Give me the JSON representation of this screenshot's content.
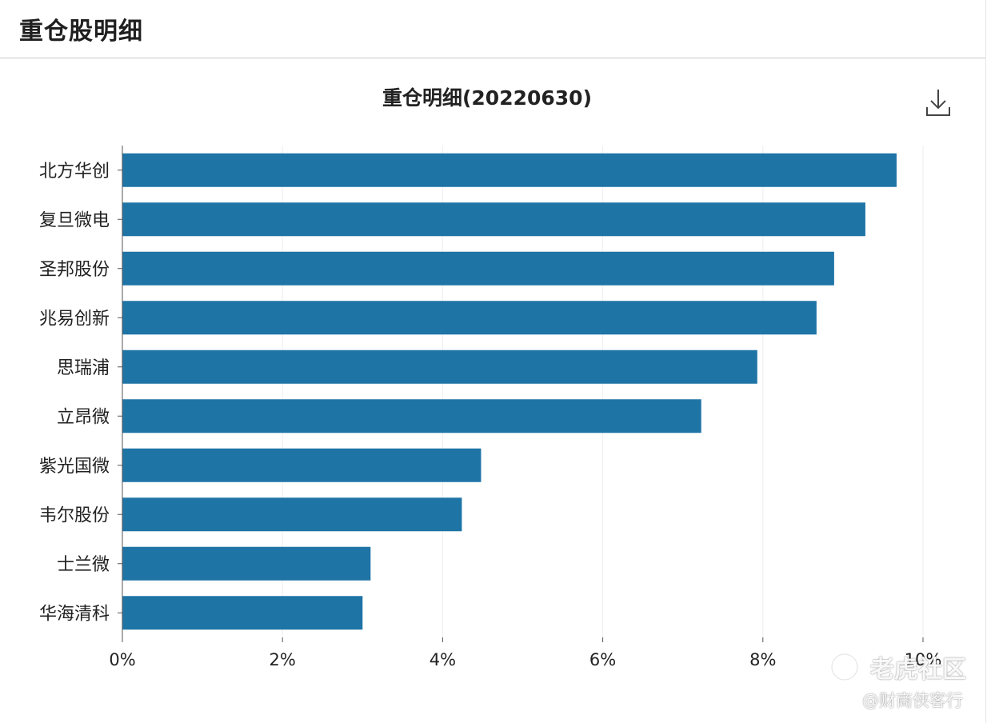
{
  "header": {
    "title": "重仓股明细"
  },
  "toolbar": {
    "download_icon": "download-icon"
  },
  "watermark": {
    "main": "老虎社区",
    "sub": "@财商侠客行"
  },
  "colors": {
    "bar": "#1f74a6",
    "axis": "#555555",
    "grid": "#eeeeee"
  },
  "chart_data": {
    "type": "bar",
    "orientation": "horizontal",
    "title": "重仓明细(20220630)",
    "xlabel": "",
    "ylabel": "",
    "xlim": [
      0,
      10
    ],
    "x_ticks": [
      0,
      2,
      4,
      6,
      8,
      10
    ],
    "x_tick_labels": [
      "0%",
      "2%",
      "4%",
      "6%",
      "8%",
      "10%"
    ],
    "grid": true,
    "categories": [
      "北方华创",
      "复旦微电",
      "圣邦股份",
      "兆易创新",
      "思瑞浦",
      "立昂微",
      "紫光国微",
      "韦尔股份",
      "士兰微",
      "华海清科"
    ],
    "values": [
      9.67,
      9.28,
      8.89,
      8.67,
      7.93,
      7.23,
      4.48,
      4.24,
      3.1,
      3.0
    ]
  }
}
